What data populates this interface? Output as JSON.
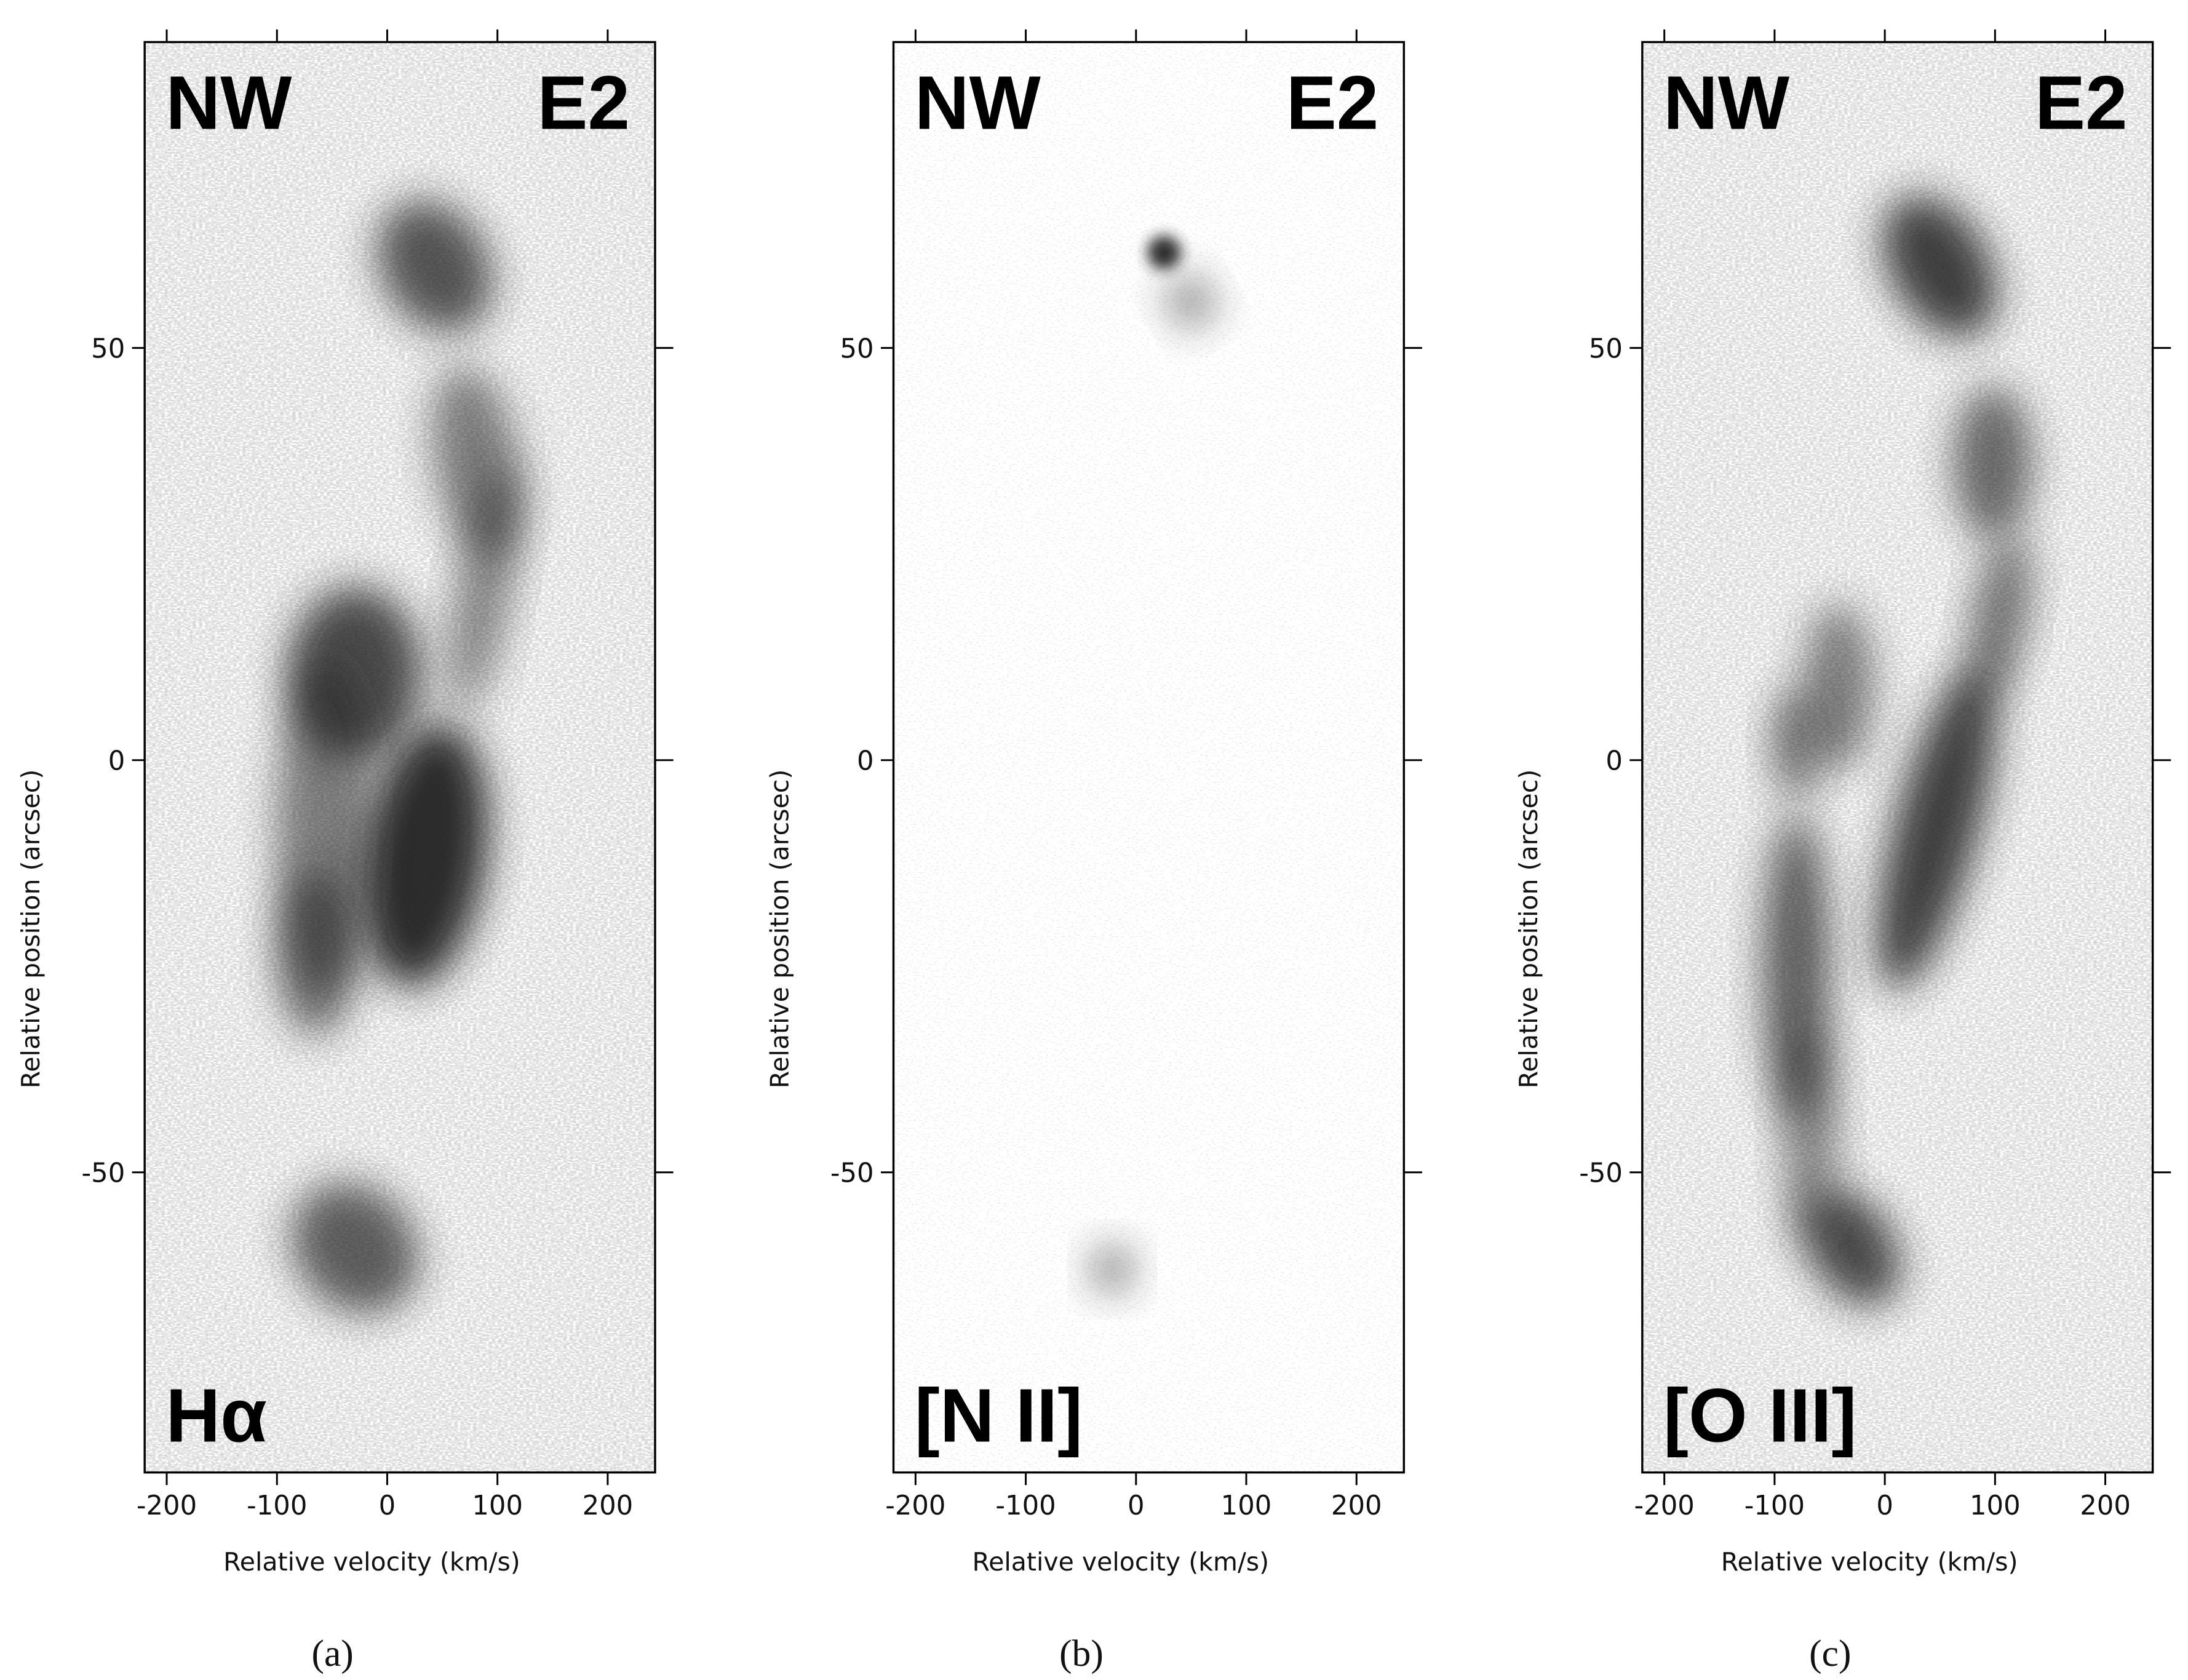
{
  "chart_data": [
    {
      "type": "image",
      "xlabel": "Relative velocity (km/s)",
      "ylabel": "Relative position (arcsec)",
      "xlim": [
        -220,
        243
      ],
      "ylim": [
        -86.4,
        87.1
      ],
      "xticks": [
        -200,
        -100,
        0,
        100,
        200
      ],
      "yticks": [
        -50,
        0,
        50
      ],
      "annotations": [
        "NW",
        "E2",
        "Hα"
      ],
      "panel_label": "(a)",
      "colormap": "gray_r"
    },
    {
      "type": "image",
      "xlabel": "Relative velocity (km/s)",
      "ylabel": "Relative position (arcsec)",
      "xlim": [
        -220,
        243
      ],
      "ylim": [
        -86.4,
        87.1
      ],
      "xticks": [
        -200,
        -100,
        0,
        100,
        200
      ],
      "yticks": [
        -50,
        0,
        50
      ],
      "annotations": [
        "NW",
        "E2",
        "[N II]"
      ],
      "panel_label": "(b)",
      "colormap": "gray_r"
    },
    {
      "type": "image",
      "xlabel": "Relative velocity (km/s)",
      "ylabel": "Relative position (arcsec)",
      "xlim": [
        -220,
        243
      ],
      "ylim": [
        -86.4,
        87.1
      ],
      "xticks": [
        -200,
        -100,
        0,
        100,
        200
      ],
      "yticks": [
        -50,
        0,
        50
      ],
      "annotations": [
        "NW",
        "E2",
        "[O III]"
      ],
      "panel_label": "(c)",
      "colormap": "gray_r"
    }
  ]
}
